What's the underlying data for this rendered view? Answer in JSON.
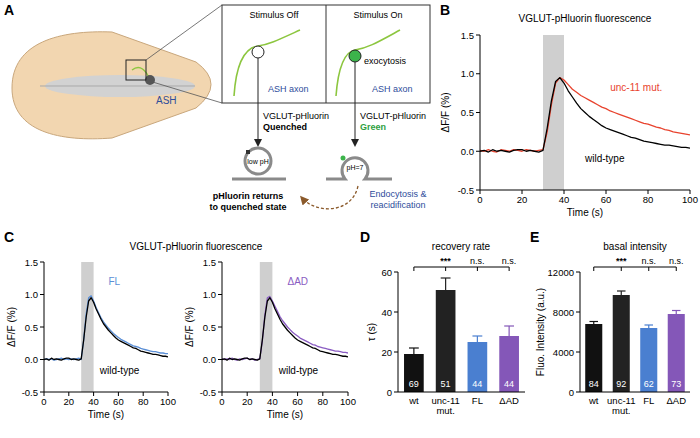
{
  "diagram": {
    "panel_label": "A",
    "worm_label": "ASH",
    "off": {
      "title": "Stimulus Off",
      "axon": "ASH axon",
      "reporter": "VGLUT-pHluorin",
      "state": "Quenched",
      "ph": "low pH"
    },
    "on": {
      "title": "Stimulus On",
      "event": "exocytosis",
      "axon": "ASH axon",
      "reporter": "VGLUT-pHluorin",
      "state": "Green",
      "ph": "pH=7"
    },
    "return_text": "pHluorin returns to quenched state",
    "cycle_text": "Endocytosis & reacidification"
  },
  "chart_data": [
    {
      "panel_label": "B",
      "type": "line",
      "title": "VGLUT-pHluorin fluorescence",
      "x_label": "Time (s)",
      "y_label": "ΔF/F (%)",
      "x": [
        0,
        2,
        4,
        6,
        8,
        10,
        12,
        14,
        16,
        18,
        20,
        22,
        24,
        26,
        28,
        30,
        32,
        34,
        36,
        38,
        40,
        42,
        44,
        46,
        48,
        50,
        52,
        54,
        56,
        58,
        60,
        62,
        64,
        66,
        68,
        70,
        72,
        74,
        76,
        78,
        80,
        82,
        84,
        86,
        88,
        90,
        92,
        94,
        96,
        98,
        100
      ],
      "xlim": [
        0,
        100
      ],
      "xticks": [
        0,
        20,
        40,
        60,
        80,
        100
      ],
      "ylim": [
        -0.5,
        1.5
      ],
      "yticks": [
        -0.5,
        {
          "value": 0,
          "label": "0.0"
        },
        0.5,
        {
          "value": 1,
          "label": "1.0"
        },
        1.5
      ],
      "highlight_x": [
        30,
        40
      ],
      "series": [
        {
          "name": "unc-11 mut.",
          "color": "#e8432e",
          "values": [
            0.01,
            0,
            0.02,
            0,
            -0.01,
            0.02,
            0.01,
            0,
            0.02,
            0.01,
            0,
            0.02,
            0.01,
            0,
            0.01,
            0.02,
            0.25,
            0.6,
            0.88,
            0.95,
            0.92,
            0.86,
            0.8,
            0.76,
            0.72,
            0.69,
            0.66,
            0.63,
            0.6,
            0.57,
            0.55,
            0.52,
            0.5,
            0.48,
            0.46,
            0.44,
            0.42,
            0.4,
            0.38,
            0.36,
            0.35,
            0.33,
            0.31,
            0.3,
            0.28,
            0.27,
            0.25,
            0.24,
            0.23,
            0.22,
            0.21
          ]
        },
        {
          "name": "wild-type",
          "color": "#000000",
          "values": [
            0,
            0.01,
            -0.01,
            0.02,
            0,
            0.01,
            0,
            -0.01,
            0.01,
            0.02,
            0.02,
            0,
            0.01,
            0,
            -0.01,
            0.01,
            0.3,
            0.65,
            0.9,
            0.95,
            0.88,
            0.78,
            0.7,
            0.62,
            0.55,
            0.5,
            0.45,
            0.41,
            0.37,
            0.33,
            0.3,
            0.28,
            0.26,
            0.24,
            0.22,
            0.2,
            0.18,
            0.17,
            0.15,
            0.13,
            0.12,
            0.11,
            0.1,
            0.09,
            0.08,
            0.08,
            0.07,
            0.06,
            0.05,
            0.05,
            0.04
          ]
        }
      ]
    },
    {
      "panel_label": "C",
      "type": "line",
      "title": "VGLUT-pHluorin fluorescence",
      "x_label": "Time (s)",
      "y_label": "ΔF/F (%)",
      "x": [
        0,
        2,
        4,
        6,
        8,
        10,
        12,
        14,
        16,
        18,
        20,
        22,
        24,
        26,
        28,
        30,
        32,
        34,
        36,
        38,
        40,
        42,
        44,
        46,
        48,
        50,
        52,
        54,
        56,
        58,
        60,
        62,
        64,
        66,
        68,
        70,
        72,
        74,
        76,
        78,
        80,
        82,
        84,
        86,
        88,
        90,
        92,
        94,
        96,
        98,
        100
      ],
      "xlim": [
        0,
        100
      ],
      "xticks": [
        0,
        20,
        40,
        60,
        80,
        100
      ],
      "ylim": [
        -0.5,
        1.5
      ],
      "yticks": [
        -0.5,
        {
          "value": 0,
          "label": "0.0"
        },
        0.5,
        {
          "value": 1,
          "label": "1.0"
        },
        1.5
      ],
      "highlight_x": [
        30,
        40
      ],
      "series": [
        {
          "name": "FL",
          "color": "#5b8fd6",
          "values": [
            0,
            0.01,
            0,
            0.01,
            -0.01,
            0,
            0.01,
            0.02,
            0,
            0.01,
            0,
            0.01,
            0,
            0.01,
            0.02,
            0,
            0.3,
            0.7,
            0.95,
            0.98,
            0.9,
            0.8,
            0.72,
            0.64,
            0.58,
            0.53,
            0.48,
            0.44,
            0.4,
            0.37,
            0.34,
            0.31,
            0.29,
            0.27,
            0.25,
            0.23,
            0.21,
            0.2,
            0.19,
            0.17,
            0.16,
            0.15,
            0.14,
            0.13,
            0.12,
            0.12,
            0.11,
            0.1,
            0.1,
            0.09,
            0.09
          ]
        },
        {
          "name": "wild-type",
          "color": "#000000",
          "values": [
            0,
            0.01,
            -0.01,
            0.02,
            0,
            0.01,
            0,
            -0.01,
            0.01,
            0.02,
            0.02,
            0,
            0.01,
            0,
            -0.01,
            0.01,
            0.3,
            0.65,
            0.9,
            0.95,
            0.88,
            0.78,
            0.7,
            0.62,
            0.55,
            0.5,
            0.45,
            0.41,
            0.37,
            0.33,
            0.3,
            0.28,
            0.26,
            0.24,
            0.22,
            0.2,
            0.18,
            0.17,
            0.15,
            0.13,
            0.12,
            0.11,
            0.1,
            0.09,
            0.08,
            0.08,
            0.07,
            0.06,
            0.05,
            0.05,
            0.04
          ]
        }
      ]
    },
    {
      "type": "line",
      "x_label": "Time (s)",
      "y_label": "ΔF/F (%)",
      "x": [
        0,
        2,
        4,
        6,
        8,
        10,
        12,
        14,
        16,
        18,
        20,
        22,
        24,
        26,
        28,
        30,
        32,
        34,
        36,
        38,
        40,
        42,
        44,
        46,
        48,
        50,
        52,
        54,
        56,
        58,
        60,
        62,
        64,
        66,
        68,
        70,
        72,
        74,
        76,
        78,
        80,
        82,
        84,
        86,
        88,
        90,
        92,
        94,
        96,
        98,
        100
      ],
      "xlim": [
        0,
        100
      ],
      "xticks": [
        0,
        20,
        40,
        60,
        80,
        100
      ],
      "ylim": [
        -0.5,
        1.5
      ],
      "yticks": [
        -0.5,
        {
          "value": 0,
          "label": "0.0"
        },
        0.5,
        {
          "value": 1,
          "label": "1.0"
        },
        1.5
      ],
      "highlight_x": [
        30,
        40
      ],
      "series": [
        {
          "name": "ΔAD",
          "color": "#8a5cc2",
          "values": [
            0.01,
            0,
            0.01,
            0,
            0.02,
            0,
            -0.01,
            0.01,
            0,
            0.01,
            0.02,
            0,
            0.01,
            -0.01,
            0,
            0.01,
            0.28,
            0.68,
            0.95,
            0.97,
            0.9,
            0.82,
            0.74,
            0.66,
            0.6,
            0.55,
            0.5,
            0.46,
            0.42,
            0.39,
            0.36,
            0.33,
            0.31,
            0.29,
            0.27,
            0.25,
            0.23,
            0.22,
            0.2,
            0.19,
            0.18,
            0.17,
            0.16,
            0.15,
            0.14,
            0.13,
            0.13,
            0.12,
            0.11,
            0.11,
            0.1
          ]
        },
        {
          "name": "wild-type",
          "color": "#000000",
          "values": [
            0,
            0.01,
            -0.01,
            0.02,
            0,
            0.01,
            0,
            -0.01,
            0.01,
            0.02,
            0.02,
            0,
            0.01,
            0,
            -0.01,
            0.01,
            0.3,
            0.65,
            0.9,
            0.95,
            0.88,
            0.78,
            0.7,
            0.62,
            0.55,
            0.5,
            0.45,
            0.41,
            0.37,
            0.33,
            0.3,
            0.28,
            0.26,
            0.24,
            0.22,
            0.2,
            0.18,
            0.17,
            0.15,
            0.13,
            0.12,
            0.11,
            0.1,
            0.09,
            0.08,
            0.08,
            0.07,
            0.06,
            0.05,
            0.05,
            0.04
          ]
        }
      ]
    },
    {
      "panel_label": "D",
      "type": "bar",
      "title": "recovery rate",
      "y_label": "τ (s)",
      "categories": [
        "wt",
        "unc-11 mut.",
        "FL",
        "ΔAD"
      ],
      "values": [
        19,
        51,
        25,
        28
      ],
      "errors": [
        3,
        6,
        3,
        5
      ],
      "n": [
        69,
        51,
        44,
        44
      ],
      "significance": [
        null,
        "***",
        "n.s.",
        "n.s."
      ],
      "colors": [
        "#111111",
        "#222222",
        "#4a7fd0",
        "#8457b8"
      ],
      "ylim": [
        0,
        60
      ],
      "yticks": [
        0,
        20,
        40,
        60
      ]
    },
    {
      "panel_label": "E",
      "type": "bar",
      "title": "basal intensity",
      "y_label": "Fluo. Intensity (a.u.)",
      "categories": [
        "wt",
        "unc-11 mut.",
        "FL",
        "ΔAD"
      ],
      "values": [
        6800,
        9700,
        6400,
        7800
      ],
      "errors": [
        250,
        400,
        300,
        350
      ],
      "n": [
        84,
        92,
        62,
        73
      ],
      "significance": [
        null,
        "***",
        "n.s.",
        "n.s."
      ],
      "colors": [
        "#111111",
        "#222222",
        "#4a7fd0",
        "#8457b8"
      ],
      "ylim": [
        0,
        12000
      ],
      "yticks": [
        0,
        4000,
        8000,
        12000
      ]
    }
  ]
}
